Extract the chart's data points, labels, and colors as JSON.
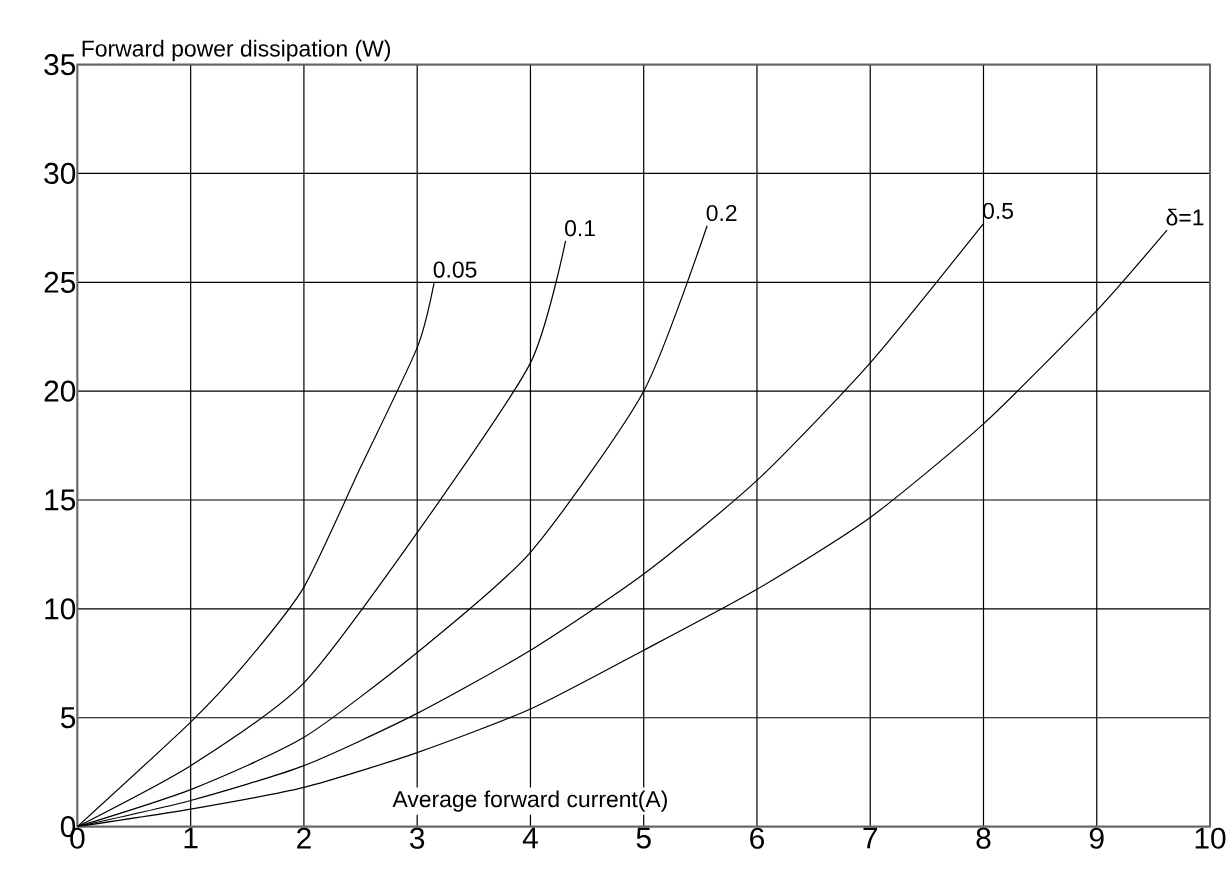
{
  "chart_data": {
    "type": "line",
    "xlabel": "Average forward current(A)",
    "ylabel": "Forward power dissipation (W)",
    "xlim": [
      0,
      10
    ],
    "ylim": [
      0,
      35
    ],
    "xticks": [
      0,
      1,
      2,
      3,
      4,
      5,
      6,
      7,
      8,
      9,
      10
    ],
    "yticks": [
      0,
      5,
      10,
      15,
      20,
      25,
      30,
      35
    ],
    "grid": true,
    "marker": "none",
    "line_style": "solid",
    "series": [
      {
        "name": "0.05",
        "color": "#000000",
        "x": [
          0,
          1,
          1.5,
          2,
          2.5,
          3,
          3.15
        ],
        "values": [
          0,
          4.8,
          7.6,
          11,
          16.5,
          22,
          25
        ]
      },
      {
        "name": "0.1",
        "color": "#000000",
        "x": [
          0,
          1,
          2,
          3,
          4,
          4.31
        ],
        "values": [
          0,
          2.8,
          6.6,
          13.5,
          21.3,
          26.9
        ]
      },
      {
        "name": "0.2",
        "color": "#000000",
        "x": [
          0,
          1,
          2,
          3,
          4,
          5,
          5.56
        ],
        "values": [
          0,
          1.7,
          4.1,
          8,
          12.6,
          20,
          27.6
        ]
      },
      {
        "name": "0.5",
        "color": "#000000",
        "x": [
          0,
          1,
          2,
          3,
          4,
          5,
          6,
          7,
          8
        ],
        "values": [
          0,
          1.2,
          2.8,
          5.2,
          8.1,
          11.6,
          15.9,
          21.3,
          27.7
        ]
      },
      {
        "name": "δ=1",
        "color": "#000000",
        "x": [
          0,
          1,
          2,
          3,
          4,
          5,
          6,
          7,
          8,
          9,
          9.62
        ],
        "values": [
          0,
          0.8,
          1.8,
          3.4,
          5.4,
          8.1,
          10.9,
          14.2,
          18.5,
          23.7,
          27.4
        ]
      }
    ]
  }
}
